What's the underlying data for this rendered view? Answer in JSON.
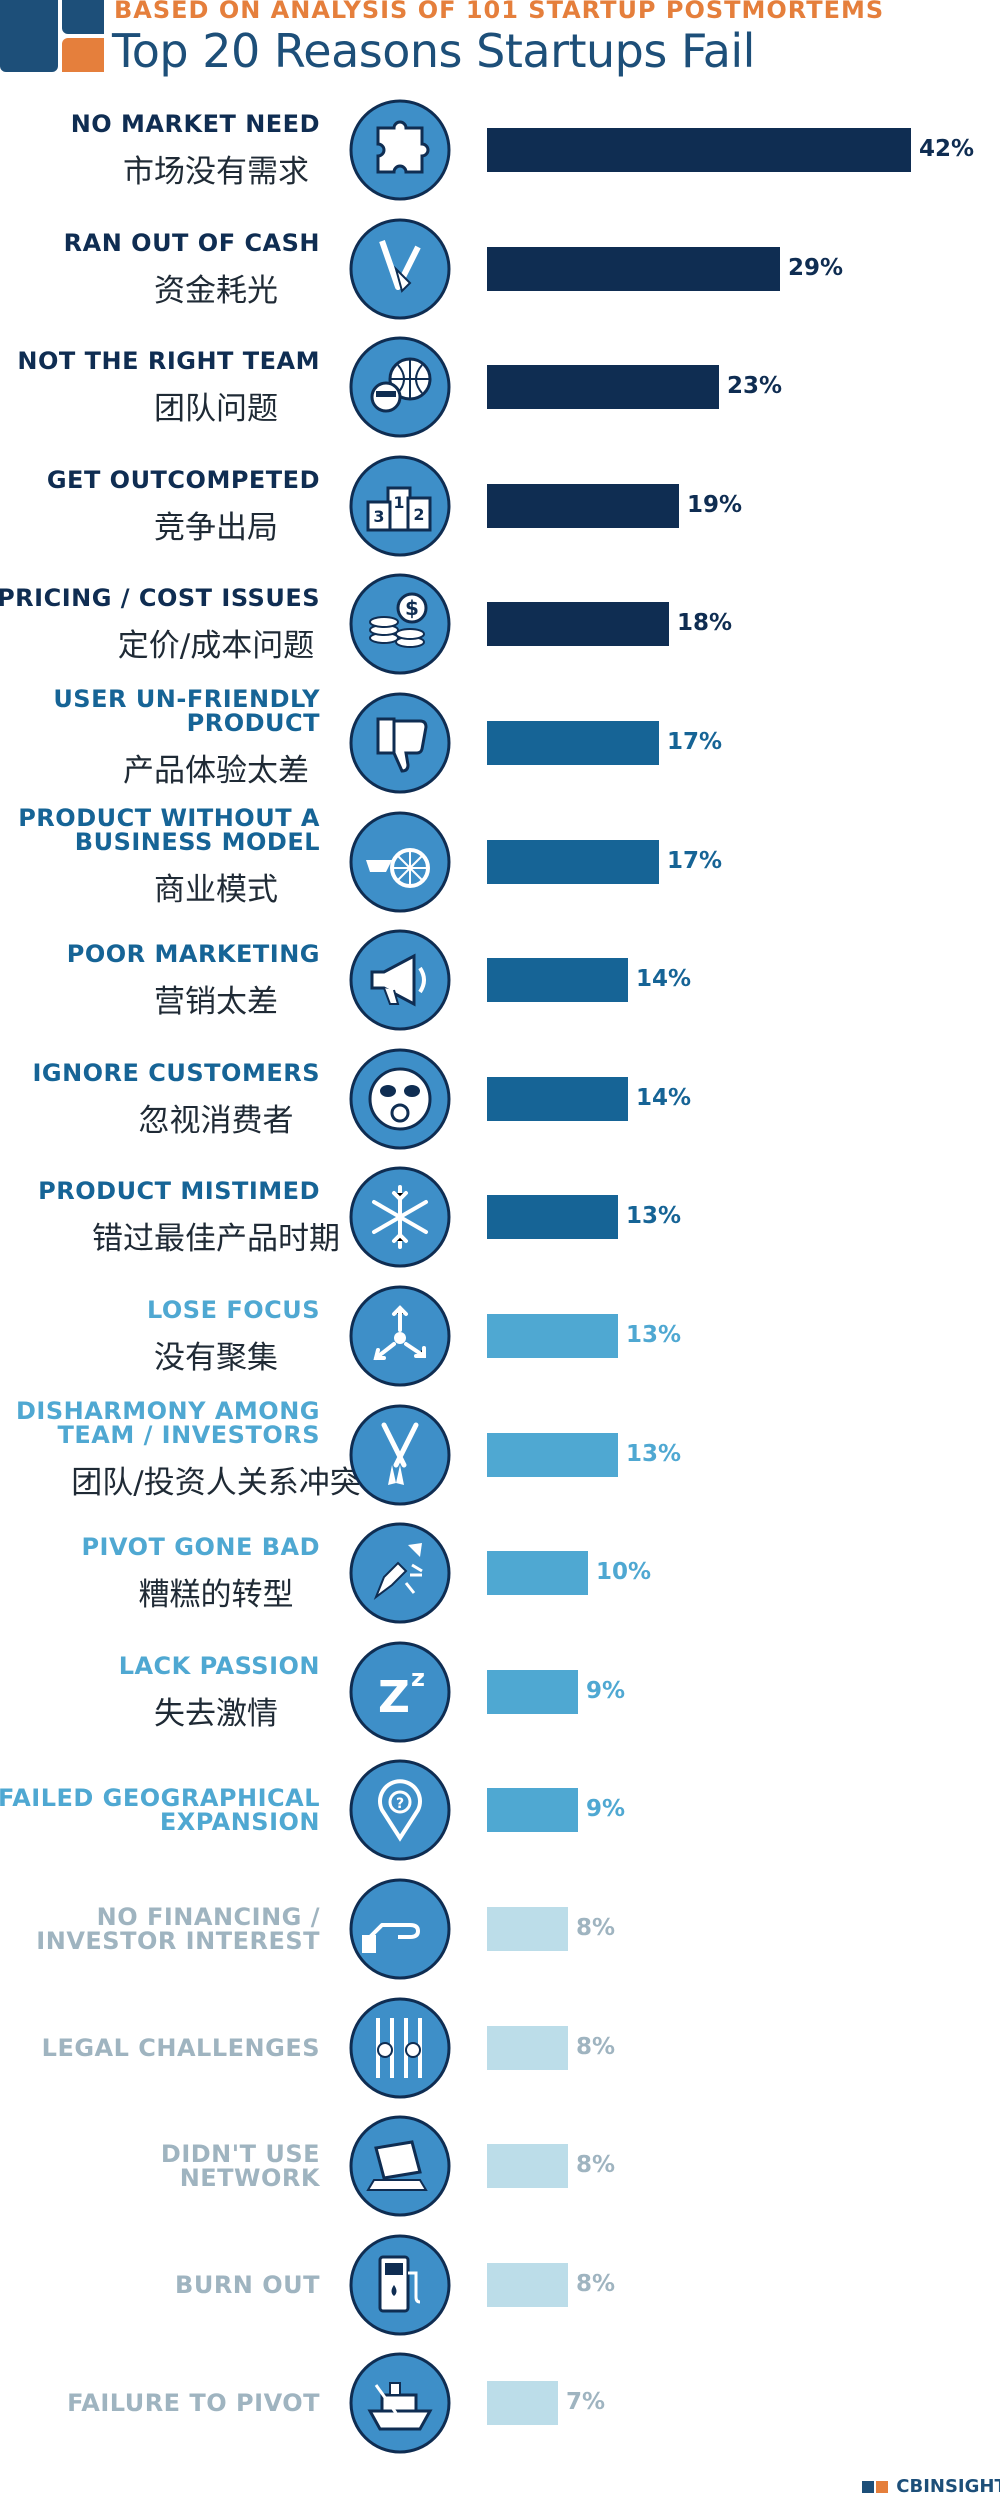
{
  "header": {
    "subtitle": "BASED ON ANALYSIS OF 101 STARTUP POSTMORTEMS",
    "title": "Top 20 Reasons Startups Fail"
  },
  "footer": {
    "brand": "CBINSIGHTS"
  },
  "colors": {
    "dark": "#0f2d52",
    "medium": "#166496",
    "light": "#4fa8d2",
    "pale": "#bcdde9",
    "label_dark": "#0f2d52",
    "label_medium": "#166496",
    "label_light": "#4fa8d2",
    "label_pale": "#9fb4c0",
    "accent": "#e57f3c"
  },
  "chart_data": {
    "type": "bar",
    "orientation": "horizontal",
    "title": "Top 20 Reasons Startups Fail",
    "subtitle": "BASED ON ANALYSIS OF 101 STARTUP POSTMORTEMS",
    "value_suffix": "%",
    "xlim": [
      0,
      42
    ],
    "grid": false,
    "items": [
      {
        "en": [
          "NO MARKET NEED"
        ],
        "zh": "市场没有需求",
        "value": 42,
        "tier": "dark",
        "icon": "puzzle-icon"
      },
      {
        "en": [
          "RAN OUT OF CASH"
        ],
        "zh": "资金耗光",
        "value": 29,
        "tier": "dark",
        "icon": "empty-pocket-icon"
      },
      {
        "en": [
          "NOT THE RIGHT TEAM"
        ],
        "zh": "团队问题",
        "value": 23,
        "tier": "dark",
        "icon": "team-globe-icon"
      },
      {
        "en": [
          "GET OUTCOMPETED"
        ],
        "zh": "竞争出局",
        "value": 19,
        "tier": "dark",
        "icon": "podium-icon"
      },
      {
        "en": [
          "PRICING / COST ISSUES"
        ],
        "zh": "定价/成本问题",
        "value": 18,
        "tier": "dark",
        "icon": "coins-icon"
      },
      {
        "en": [
          "USER UN-FRIENDLY",
          "PRODUCT"
        ],
        "zh": "产品体验太差",
        "value": 17,
        "tier": "medium",
        "icon": "thumbs-down-icon"
      },
      {
        "en": [
          "PRODUCT WITHOUT A",
          "BUSINESS MODEL"
        ],
        "zh": "商业模式",
        "value": 17,
        "tier": "medium",
        "icon": "cart-icon"
      },
      {
        "en": [
          "POOR MARKETING"
        ],
        "zh": "营销太差",
        "value": 14,
        "tier": "medium",
        "icon": "megaphone-icon"
      },
      {
        "en": [
          "IGNORE CUSTOMERS"
        ],
        "zh": "忽视消费者",
        "value": 14,
        "tier": "medium",
        "icon": "monkey-icon"
      },
      {
        "en": [
          "PRODUCT MISTIMED"
        ],
        "zh": "错过最佳产品时期",
        "value": 13,
        "tier": "medium",
        "icon": "snowflake-icon"
      },
      {
        "en": [
          "LOSE FOCUS"
        ],
        "zh": "没有聚集",
        "value": 13,
        "tier": "light",
        "icon": "arrows-scatter-icon"
      },
      {
        "en": [
          "DISHARMONY AMONG",
          "TEAM / INVESTORS"
        ],
        "zh": "团队/投资人关系冲突",
        "value": 13,
        "tier": "light",
        "icon": "oars-icon"
      },
      {
        "en": [
          "PIVOT GONE BAD"
        ],
        "zh": "糟糕的转型",
        "value": 10,
        "tier": "light",
        "icon": "broken-pencil-icon"
      },
      {
        "en": [
          "LACK PASSION"
        ],
        "zh": "失去激情",
        "value": 9,
        "tier": "light",
        "icon": "sleep-zzz-icon"
      },
      {
        "en": [
          "FAILED GEOGRAPHICAL",
          "EXPANSION"
        ],
        "zh": "",
        "value": 9,
        "tier": "light",
        "icon": "map-pin-icon"
      },
      {
        "en": [
          "NO FINANCING /",
          "INVESTOR INTEREST"
        ],
        "zh": "",
        "value": 8,
        "tier": "pale",
        "icon": "hand-icon"
      },
      {
        "en": [
          "LEGAL CHALLENGES"
        ],
        "zh": "",
        "value": 8,
        "tier": "pale",
        "icon": "jail-icon"
      },
      {
        "en": [
          "DIDN'T USE",
          "NETWORK"
        ],
        "zh": "",
        "value": 8,
        "tier": "pale",
        "icon": "laptop-icon"
      },
      {
        "en": [
          "BURN OUT"
        ],
        "zh": "",
        "value": 8,
        "tier": "pale",
        "icon": "gas-pump-icon"
      },
      {
        "en": [
          "FAILURE TO PIVOT"
        ],
        "zh": "",
        "value": 7,
        "tier": "pale",
        "icon": "ship-icon"
      }
    ]
  }
}
